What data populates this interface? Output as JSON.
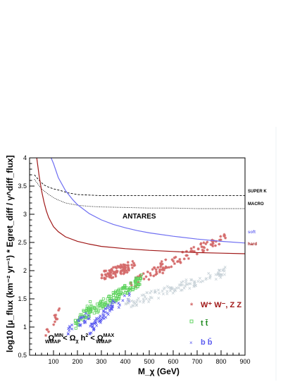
{
  "chart_data": {
    "type": "scatter",
    "xlabel": "M_χ (GeV)",
    "ylabel": "log10 [μ_flux (km⁻² yr⁻¹) * Egret_diff / γ^diff_flux]",
    "xlim": [
      0,
      900
    ],
    "ylim": [
      0.5,
      4
    ],
    "x_ticks": [
      "100",
      "200",
      "300",
      "400",
      "500",
      "600",
      "700",
      "800",
      "900"
    ],
    "y_ticks": [
      "0.5",
      "1",
      "1.5",
      "2",
      "2.5",
      "3",
      "3.5",
      "4"
    ],
    "grid": false,
    "annotation": "ANTARES",
    "condition_text": {
      "omega1": "Ω",
      "omega1_sup": "MIN",
      "omega1_sub": "WMAP",
      "lt1": " < ",
      "omega2": "Ω",
      "omega2_sub": "χ",
      "h2": " h",
      "h2_sup": "2",
      "lt2": " < ",
      "omega3": "Ω",
      "omega3_sup": "MAX",
      "omega3_sub": "WMAP"
    },
    "curves": [
      {
        "name": "SUPER K",
        "color": "#000000",
        "style": "dashed",
        "x": [
          20,
          40,
          60,
          80,
          100,
          130,
          160,
          200,
          250,
          300,
          400,
          500,
          600,
          700,
          800,
          900
        ],
        "y": [
          3.7,
          3.6,
          3.52,
          3.48,
          3.45,
          3.42,
          3.38,
          3.35,
          3.34,
          3.33,
          3.33,
          3.33,
          3.33,
          3.33,
          3.33,
          3.33
        ]
      },
      {
        "name": "MACRO",
        "color": "#000000",
        "style": "dotted",
        "x": [
          20,
          50,
          80,
          110,
          150,
          200,
          250,
          300,
          400,
          500,
          600,
          700,
          800,
          900
        ],
        "y": [
          3.62,
          3.45,
          3.35,
          3.27,
          3.2,
          3.16,
          3.14,
          3.13,
          3.12,
          3.11,
          3.11,
          3.1,
          3.1,
          3.1
        ]
      },
      {
        "name": "soft",
        "color": "#6f6ff2",
        "style": "solid",
        "x": [
          90,
          100,
          120,
          150,
          180,
          200,
          250,
          300,
          350,
          400,
          450,
          500,
          600,
          700,
          800,
          900
        ],
        "y": [
          4.0,
          3.9,
          3.65,
          3.42,
          3.26,
          3.17,
          3.01,
          2.9,
          2.82,
          2.76,
          2.71,
          2.67,
          2.61,
          2.56,
          2.52,
          2.49
        ]
      },
      {
        "name": "hard",
        "color": "#a01818",
        "style": "solid",
        "x": [
          30,
          40,
          50,
          60,
          70,
          80,
          100,
          120,
          150,
          200,
          250,
          300,
          400,
          500,
          600,
          700,
          800,
          900
        ],
        "y": [
          4.0,
          3.68,
          3.42,
          3.22,
          3.06,
          2.94,
          2.78,
          2.69,
          2.6,
          2.52,
          2.47,
          2.43,
          2.39,
          2.36,
          2.34,
          2.32,
          2.31,
          2.3
        ]
      }
    ],
    "series": [
      {
        "name": "W⁺ W⁻, Z Z",
        "color": "#d46a6a",
        "marker": "*",
        "bands": [
          {
            "x0": 60,
            "x1": 130,
            "y0": 0.8,
            "y1": 1.3,
            "n": 14
          },
          {
            "x0": 300,
            "x1": 440,
            "y0": 1.9,
            "y1": 2.1,
            "n": 90
          },
          {
            "x0": 420,
            "x1": 560,
            "y0": 1.75,
            "y1": 2.05,
            "n": 30
          },
          {
            "x0": 540,
            "x1": 820,
            "y0": 2.05,
            "y1": 2.6,
            "n": 70
          }
        ]
      },
      {
        "name": "t t̄",
        "color": "#5fd35f",
        "marker": "square",
        "bands": [
          {
            "x0": 180,
            "x1": 260,
            "y0": 1.0,
            "y1": 1.4,
            "n": 30
          },
          {
            "x0": 230,
            "x1": 470,
            "y0": 1.2,
            "y1": 1.85,
            "n": 140
          }
        ]
      },
      {
        "name": "b b̄",
        "color": "#5a5af0",
        "marker": "x",
        "bands": [
          {
            "x0": 160,
            "x1": 260,
            "y0": 0.95,
            "y1": 1.25,
            "n": 25
          },
          {
            "x0": 250,
            "x1": 350,
            "y0": 0.95,
            "y1": 1.4,
            "n": 60
          },
          {
            "x0": 340,
            "x1": 420,
            "y0": 1.3,
            "y1": 1.55,
            "n": 12
          }
        ]
      },
      {
        "name": "",
        "color": "#c8d2d8",
        "marker": "x",
        "bands": [
          {
            "x0": 400,
            "x1": 830,
            "y0": 1.4,
            "y1": 2.0,
            "n": 120
          }
        ]
      }
    ]
  }
}
